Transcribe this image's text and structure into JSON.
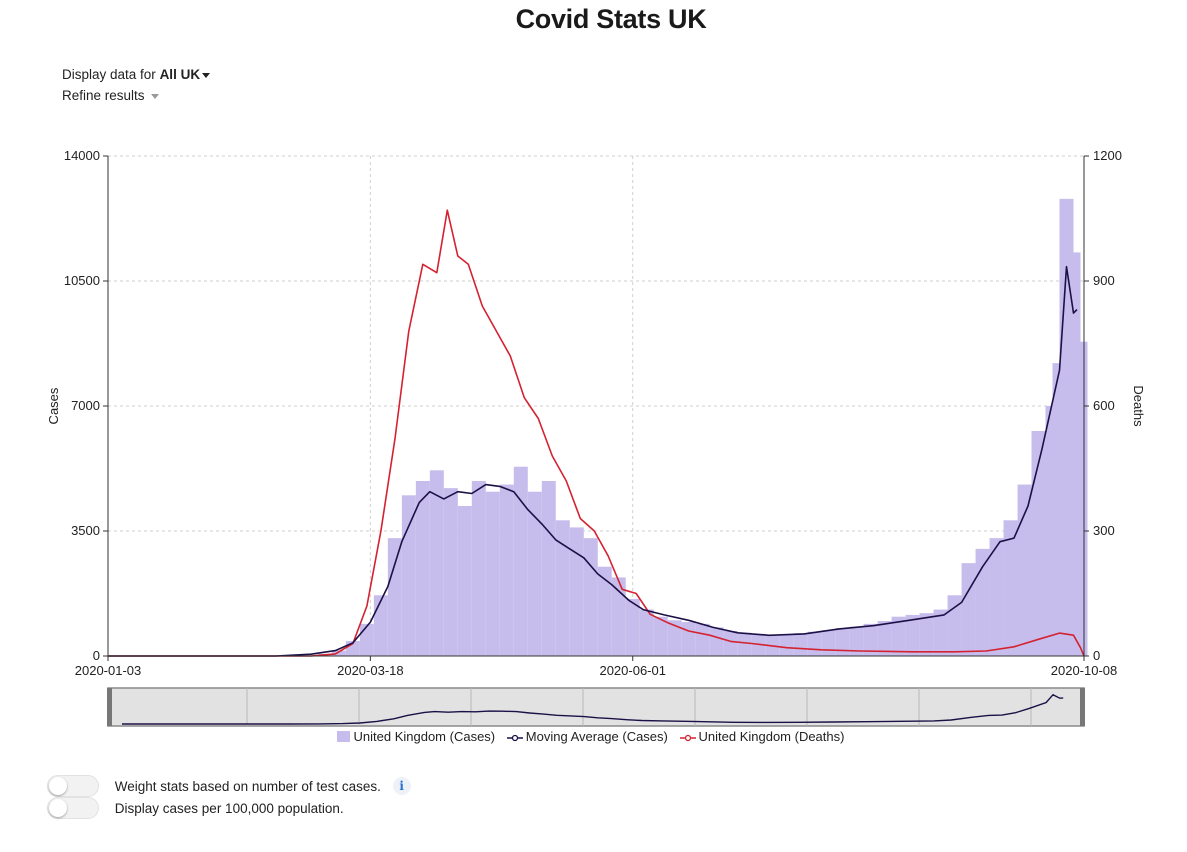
{
  "page": {
    "title": "Covid Stats UK"
  },
  "controls": {
    "display_prefix": "Display data for",
    "region_selected": "All UK",
    "refine_label": "Refine results"
  },
  "toggles": [
    {
      "label": "Weight stats based on number of test cases.",
      "on": false,
      "info_icon": "info-icon"
    },
    {
      "label": "Display cases per 100,000 population.",
      "on": false
    }
  ],
  "colors": {
    "cases_bar": "#c6bdec",
    "moving_average": "#1c1046",
    "deaths": "#d42231"
  },
  "chart_data": {
    "type": "bar",
    "x_range": [
      "2020-01-03",
      "2020-10-08"
    ],
    "x_ticks": [
      "2020-01-03",
      "2020-03-18",
      "2020-06-01",
      "2020-10-08"
    ],
    "y_left": {
      "label": "Cases",
      "range": [
        0,
        14000
      ],
      "ticks": [
        0,
        3500,
        7000,
        10500,
        14000
      ]
    },
    "y_right": {
      "label": "Deaths",
      "range": [
        0,
        1200
      ],
      "ticks": [
        0,
        300,
        600,
        900,
        1200
      ]
    },
    "grid": true,
    "legend_position": "bottom",
    "series": [
      {
        "name": "United Kingdom (Cases)",
        "type": "bar",
        "axis": "left",
        "points": [
          [
            "2020-03-01",
            20
          ],
          [
            "2020-03-05",
            60
          ],
          [
            "2020-03-09",
            150
          ],
          [
            "2020-03-13",
            420
          ],
          [
            "2020-03-17",
            900
          ],
          [
            "2020-03-21",
            1700
          ],
          [
            "2020-03-25",
            3300
          ],
          [
            "2020-03-29",
            4500
          ],
          [
            "2020-04-02",
            4900
          ],
          [
            "2020-04-06",
            5200
          ],
          [
            "2020-04-10",
            4700
          ],
          [
            "2020-04-14",
            4200
          ],
          [
            "2020-04-18",
            4900
          ],
          [
            "2020-04-22",
            4600
          ],
          [
            "2020-04-26",
            4800
          ],
          [
            "2020-04-30",
            5300
          ],
          [
            "2020-05-04",
            4600
          ],
          [
            "2020-05-08",
            4900
          ],
          [
            "2020-05-12",
            3800
          ],
          [
            "2020-05-16",
            3600
          ],
          [
            "2020-05-20",
            3300
          ],
          [
            "2020-05-24",
            2500
          ],
          [
            "2020-05-28",
            2200
          ],
          [
            "2020-06-01",
            1600
          ],
          [
            "2020-06-05",
            1300
          ],
          [
            "2020-06-09",
            1100
          ],
          [
            "2020-06-13",
            1000
          ],
          [
            "2020-06-17",
            950
          ],
          [
            "2020-06-21",
            900
          ],
          [
            "2020-06-25",
            800
          ],
          [
            "2020-06-29",
            700
          ],
          [
            "2020-07-03",
            650
          ],
          [
            "2020-07-07",
            620
          ],
          [
            "2020-07-11",
            600
          ],
          [
            "2020-07-15",
            600
          ],
          [
            "2020-07-19",
            640
          ],
          [
            "2020-07-23",
            680
          ],
          [
            "2020-07-27",
            720
          ],
          [
            "2020-07-31",
            780
          ],
          [
            "2020-08-04",
            820
          ],
          [
            "2020-08-08",
            900
          ],
          [
            "2020-08-12",
            980
          ],
          [
            "2020-08-16",
            1100
          ],
          [
            "2020-08-20",
            1150
          ],
          [
            "2020-08-24",
            1200
          ],
          [
            "2020-08-28",
            1300
          ],
          [
            "2020-09-01",
            1700
          ],
          [
            "2020-09-05",
            2600
          ],
          [
            "2020-09-09",
            3000
          ],
          [
            "2020-09-13",
            3300
          ],
          [
            "2020-09-17",
            3800
          ],
          [
            "2020-09-21",
            4800
          ],
          [
            "2020-09-25",
            6300
          ],
          [
            "2020-09-29",
            7000
          ],
          [
            "2020-10-01",
            8200
          ],
          [
            "2020-10-03",
            12800
          ],
          [
            "2020-10-05",
            11300
          ],
          [
            "2020-10-07",
            8800
          ]
        ]
      },
      {
        "name": "Moving Average (Cases)",
        "type": "line",
        "axis": "left",
        "points": [
          [
            "2020-01-03",
            0
          ],
          [
            "2020-02-20",
            0
          ],
          [
            "2020-03-01",
            50
          ],
          [
            "2020-03-08",
            150
          ],
          [
            "2020-03-13",
            370
          ],
          [
            "2020-03-18",
            950
          ],
          [
            "2020-03-23",
            1950
          ],
          [
            "2020-03-27",
            3200
          ],
          [
            "2020-04-01",
            4300
          ],
          [
            "2020-04-04",
            4600
          ],
          [
            "2020-04-08",
            4400
          ],
          [
            "2020-04-12",
            4600
          ],
          [
            "2020-04-16",
            4550
          ],
          [
            "2020-04-20",
            4800
          ],
          [
            "2020-04-24",
            4750
          ],
          [
            "2020-04-28",
            4600
          ],
          [
            "2020-05-02",
            4100
          ],
          [
            "2020-05-06",
            3700
          ],
          [
            "2020-05-10",
            3250
          ],
          [
            "2020-05-14",
            3000
          ],
          [
            "2020-05-18",
            2750
          ],
          [
            "2020-05-22",
            2300
          ],
          [
            "2020-05-26",
            2000
          ],
          [
            "2020-05-31",
            1550
          ],
          [
            "2020-06-04",
            1300
          ],
          [
            "2020-06-10",
            1150
          ],
          [
            "2020-06-17",
            1000
          ],
          [
            "2020-06-24",
            800
          ],
          [
            "2020-07-01",
            650
          ],
          [
            "2020-07-10",
            580
          ],
          [
            "2020-07-20",
            620
          ],
          [
            "2020-07-30",
            760
          ],
          [
            "2020-08-09",
            850
          ],
          [
            "2020-08-19",
            1000
          ],
          [
            "2020-08-29",
            1150
          ],
          [
            "2020-09-03",
            1500
          ],
          [
            "2020-09-09",
            2500
          ],
          [
            "2020-09-14",
            3200
          ],
          [
            "2020-09-18",
            3300
          ],
          [
            "2020-09-22",
            4200
          ],
          [
            "2020-09-26",
            5800
          ],
          [
            "2020-10-01",
            8000
          ],
          [
            "2020-10-03",
            10900
          ],
          [
            "2020-10-05",
            9600
          ],
          [
            "2020-10-06",
            9700
          ]
        ]
      },
      {
        "name": "United Kingdom (Deaths)",
        "type": "line",
        "axis": "right",
        "points": [
          [
            "2020-01-03",
            0
          ],
          [
            "2020-03-01",
            0
          ],
          [
            "2020-03-08",
            5
          ],
          [
            "2020-03-13",
            30
          ],
          [
            "2020-03-17",
            120
          ],
          [
            "2020-03-21",
            300
          ],
          [
            "2020-03-25",
            520
          ],
          [
            "2020-03-29",
            780
          ],
          [
            "2020-04-02",
            940
          ],
          [
            "2020-04-06",
            920
          ],
          [
            "2020-04-09",
            1070
          ],
          [
            "2020-04-12",
            960
          ],
          [
            "2020-04-15",
            940
          ],
          [
            "2020-04-19",
            840
          ],
          [
            "2020-04-23",
            780
          ],
          [
            "2020-04-27",
            720
          ],
          [
            "2020-05-01",
            620
          ],
          [
            "2020-05-05",
            570
          ],
          [
            "2020-05-09",
            480
          ],
          [
            "2020-05-13",
            420
          ],
          [
            "2020-05-17",
            330
          ],
          [
            "2020-05-21",
            300
          ],
          [
            "2020-05-25",
            240
          ],
          [
            "2020-05-29",
            160
          ],
          [
            "2020-06-02",
            150
          ],
          [
            "2020-06-06",
            100
          ],
          [
            "2020-06-11",
            80
          ],
          [
            "2020-06-17",
            60
          ],
          [
            "2020-06-23",
            50
          ],
          [
            "2020-06-29",
            35
          ],
          [
            "2020-07-05",
            30
          ],
          [
            "2020-07-15",
            20
          ],
          [
            "2020-07-25",
            15
          ],
          [
            "2020-08-05",
            12
          ],
          [
            "2020-08-20",
            10
          ],
          [
            "2020-09-01",
            10
          ],
          [
            "2020-09-10",
            12
          ],
          [
            "2020-09-18",
            22
          ],
          [
            "2020-09-25",
            40
          ],
          [
            "2020-10-01",
            55
          ],
          [
            "2020-10-05",
            50
          ],
          [
            "2020-10-07",
            20
          ],
          [
            "2020-10-08",
            0
          ]
        ]
      }
    ]
  }
}
